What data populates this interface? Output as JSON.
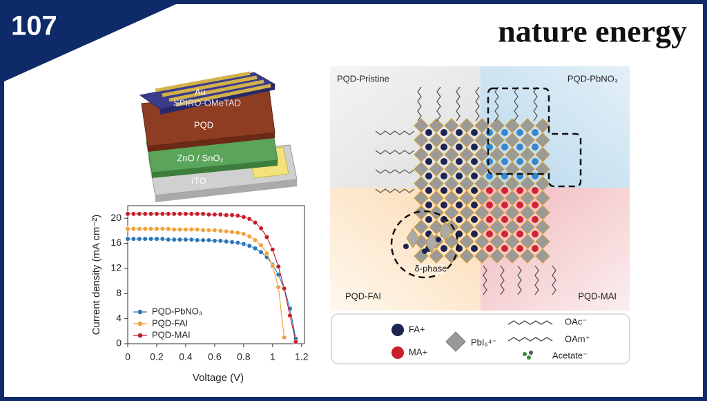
{
  "badge": "107",
  "journal": "nature energy",
  "device": {
    "layers": [
      "Au",
      "SPIRO-OMeTAD",
      "PQD",
      "ZnO / SnO₂",
      "ITO"
    ]
  },
  "chart_data": {
    "type": "line",
    "x_label": "Voltage (V)",
    "y_label": "Current density (mA cm⁻²)",
    "x": [
      0,
      0.04,
      0.08,
      0.12,
      0.16,
      0.2,
      0.24,
      0.28,
      0.32,
      0.36,
      0.4,
      0.44,
      0.48,
      0.52,
      0.56,
      0.6,
      0.64,
      0.68,
      0.72,
      0.76,
      0.8,
      0.84,
      0.88,
      0.92,
      0.96,
      1.0,
      1.04,
      1.08,
      1.12,
      1.16
    ],
    "series": [
      {
        "name": "PQD-PbNO₃",
        "color": "#2a77b8",
        "values": [
          16.7,
          16.7,
          16.7,
          16.7,
          16.7,
          16.7,
          16.7,
          16.6,
          16.6,
          16.6,
          16.6,
          16.6,
          16.5,
          16.5,
          16.5,
          16.4,
          16.4,
          16.3,
          16.2,
          16.1,
          15.9,
          15.6,
          15.2,
          14.6,
          13.8,
          12.6,
          11.0,
          8.8,
          5.6,
          0.8
        ]
      },
      {
        "name": "PQD-FAI",
        "color": "#f2a23a",
        "values": [
          18.3,
          18.3,
          18.3,
          18.3,
          18.3,
          18.3,
          18.3,
          18.3,
          18.2,
          18.2,
          18.2,
          18.2,
          18.2,
          18.1,
          18.1,
          18.1,
          18.0,
          17.9,
          17.8,
          17.7,
          17.5,
          17.1,
          16.5,
          15.7,
          14.4,
          12.4,
          9.0,
          1.0,
          null,
          null
        ]
      },
      {
        "name": "PQD-MAI",
        "color": "#c4202b",
        "values": [
          20.7,
          20.7,
          20.7,
          20.7,
          20.7,
          20.7,
          20.7,
          20.7,
          20.7,
          20.7,
          20.7,
          20.7,
          20.7,
          20.7,
          20.6,
          20.6,
          20.6,
          20.5,
          20.5,
          20.4,
          20.2,
          19.9,
          19.3,
          18.4,
          17.0,
          15.0,
          12.3,
          8.8,
          4.5,
          0.3
        ]
      }
    ],
    "xlim": [
      0,
      1.22
    ],
    "xticks": [
      0,
      0.2,
      0.4,
      0.6,
      0.8,
      1.0,
      1.2
    ],
    "ylim": [
      0,
      22
    ],
    "yticks": [
      0,
      4,
      8,
      12,
      16,
      20
    ],
    "legend": "lower left"
  },
  "diagram": {
    "quadrants": [
      "PQD-Pristine",
      "PQD-PbNO₃",
      "PQD-FAI",
      "PQD-MAI"
    ],
    "phase_label": "δ-phase",
    "legend": [
      "FA+",
      "MA+",
      "PbI₆⁴⁻",
      "OAc⁻",
      "OAm⁺",
      "Acetate⁻"
    ]
  }
}
